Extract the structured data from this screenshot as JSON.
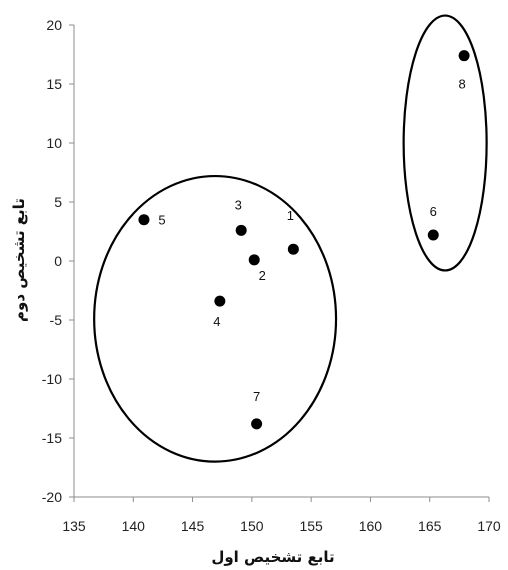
{
  "chart_data": {
    "type": "scatter",
    "xlabel": "تابع تشخیص اول",
    "ylabel": "تابع تشخیص دوم",
    "xlim": [
      135,
      170
    ],
    "ylim": [
      -20,
      20
    ],
    "xticks": [
      "135",
      "140",
      "145",
      "150",
      "155",
      "160",
      "165",
      "170"
    ],
    "yticks": [
      "20",
      "15",
      "10",
      "5",
      "0",
      "-5",
      "-10",
      "-15",
      "-20"
    ],
    "grid": false,
    "points": [
      {
        "label": "1",
        "x": 153.5,
        "y": 1.0
      },
      {
        "label": "2",
        "x": 150.2,
        "y": 0.1
      },
      {
        "label": "3",
        "x": 149.1,
        "y": 2.6
      },
      {
        "label": "4",
        "x": 147.3,
        "y": -3.4
      },
      {
        "label": "5",
        "x": 140.9,
        "y": 3.5
      },
      {
        "label": "6",
        "x": 165.3,
        "y": 2.2
      },
      {
        "label": "7",
        "x": 150.4,
        "y": -13.8
      },
      {
        "label": "8",
        "x": 167.9,
        "y": 17.4
      }
    ],
    "clusters": [
      {
        "cx": 146.9,
        "cy": -4.9,
        "rx": 10.2,
        "ry": 12.1
      },
      {
        "cx": 166.3,
        "cy": 10.0,
        "rx": 3.5,
        "ry": 10.8
      }
    ],
    "point_color": "#000000"
  }
}
